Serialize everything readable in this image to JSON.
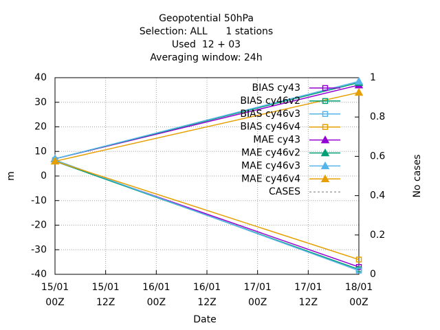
{
  "chart_data": {
    "type": "line",
    "title": [
      "Geopotential 50hPa",
      "Selection: ALL      1 stations",
      "Used  12 + 03",
      "Averaging window: 24h"
    ],
    "xlabel": "Date",
    "ylabel": "m",
    "y2label": "No cases",
    "x": [
      0,
      72
    ],
    "xlim": [
      0,
      72
    ],
    "xticks": [
      {
        "value": 0,
        "label": "15/01\n00Z"
      },
      {
        "value": 12,
        "label": "15/01\n12Z"
      },
      {
        "value": 24,
        "label": "16/01\n00Z"
      },
      {
        "value": 36,
        "label": "16/01\n12Z"
      },
      {
        "value": 48,
        "label": "17/01\n00Z"
      },
      {
        "value": 60,
        "label": "17/01\n12Z"
      },
      {
        "value": 72,
        "label": "18/01\n00Z"
      }
    ],
    "ylim": [
      -40,
      40
    ],
    "yticks": [
      -40,
      -30,
      -20,
      -10,
      0,
      10,
      20,
      30,
      40
    ],
    "y2lim": [
      0,
      1
    ],
    "y2ticks": [
      0,
      0.2,
      0.4,
      0.6,
      0.8,
      1
    ],
    "grid": true,
    "legend": "top-right",
    "series": [
      {
        "name": "BIAS cy43",
        "color": "#9400d3",
        "marker": "square",
        "values": [
          6,
          -37
        ]
      },
      {
        "name": "BIAS cy46v2",
        "color": "#009e73",
        "marker": "square",
        "values": [
          6,
          -38
        ]
      },
      {
        "name": "BIAS cy46v3",
        "color": "#56b4e9",
        "marker": "square",
        "values": [
          6.5,
          -38.5
        ]
      },
      {
        "name": "BIAS cy46v4",
        "color": "#e69f00",
        "marker": "square",
        "values": [
          6,
          -34
        ]
      },
      {
        "name": "MAE cy43",
        "color": "#9400d3",
        "marker": "triangle",
        "values": [
          7,
          37
        ]
      },
      {
        "name": "MAE cy46v2",
        "color": "#009e73",
        "marker": "triangle",
        "values": [
          7,
          38
        ]
      },
      {
        "name": "MAE cy46v3",
        "color": "#56b4e9",
        "marker": "triangle",
        "values": [
          7,
          38.5
        ]
      },
      {
        "name": "MAE cy46v4",
        "color": "#e69f00",
        "marker": "triangle",
        "values": [
          6,
          34
        ]
      },
      {
        "name": "CASES",
        "color": "#a0a0a0",
        "dash": true
      }
    ]
  }
}
